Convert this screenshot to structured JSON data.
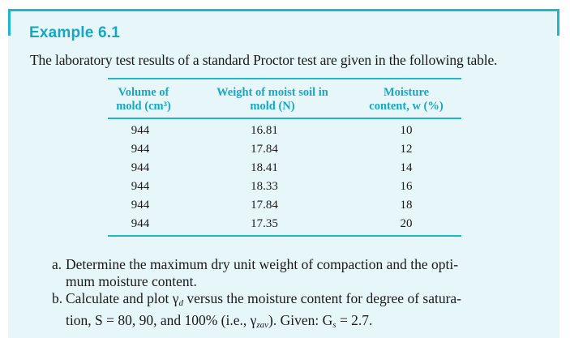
{
  "example": {
    "title": "Example 6.1",
    "intro": "The laboratory test results of a standard Proctor test are given in the following table."
  },
  "table": {
    "headers": [
      [
        "Volume of",
        "mold (cm³)"
      ],
      [
        "Weight of moist soil in",
        "mold (N)"
      ],
      [
        "Moisture",
        "content, w (%)"
      ]
    ],
    "rows": [
      [
        "944",
        "16.81",
        "10"
      ],
      [
        "944",
        "17.84",
        "12"
      ],
      [
        "944",
        "18.41",
        "14"
      ],
      [
        "944",
        "18.33",
        "16"
      ],
      [
        "944",
        "17.84",
        "18"
      ],
      [
        "944",
        "17.35",
        "20"
      ]
    ]
  },
  "questions": [
    {
      "label": "a.",
      "line1": "Determine the maximum dry unit weight of compaction and the opti-",
      "line2": "mum moisture content."
    },
    {
      "label": "b.",
      "line1_pre": "Calculate and plot γ",
      "line1_sub": "d",
      "line1_post": " versus the moisture content for degree of satura-",
      "line2_pre": "tion, S = 80, 90, and 100% (i.e., γ",
      "line2_sub": "zav",
      "line2_mid": "). Given: G",
      "line2_sub2": "s",
      "line2_post": " = 2.7."
    }
  ],
  "colors": {
    "accent": "#1fb6cf",
    "heading": "#17a7c3",
    "panel_bg": "#e6f6f9"
  }
}
